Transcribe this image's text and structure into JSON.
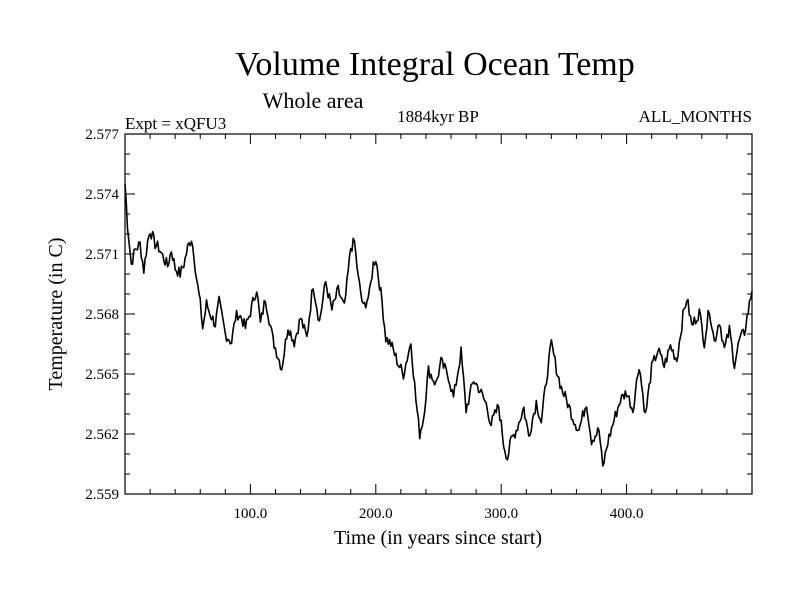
{
  "chart_data": {
    "type": "line",
    "title": "Volume Integral Ocean Temp",
    "subtitle": "Whole area",
    "left_label": "Expt = xQFU3",
    "center_label": "1884kyr BP",
    "right_label": "ALL_MONTHS",
    "xlabel": "Time (in years since start)",
    "ylabel": "Temperature (in C)",
    "xlim": [
      0,
      500
    ],
    "ylim": [
      2.559,
      2.577
    ],
    "x_ticks": [
      100,
      200,
      300,
      400
    ],
    "x_tick_labels": [
      "100.0",
      "200.0",
      "300.0",
      "400.0"
    ],
    "y_ticks": [
      2.559,
      2.562,
      2.565,
      2.568,
      2.571,
      2.574,
      2.577
    ],
    "y_tick_labels": [
      "2.559",
      "2.562",
      "2.565",
      "2.568",
      "2.571",
      "2.574",
      "2.577"
    ],
    "legend": "none",
    "grid": false,
    "series": [
      {
        "name": "Volume Integral Ocean Temp",
        "anchors": {
          "x": [
            0,
            2,
            5,
            8,
            12,
            15,
            18,
            20,
            24,
            27,
            30,
            34,
            37,
            40,
            44,
            47,
            50,
            53,
            55,
            57,
            60,
            62,
            65,
            68,
            72,
            75,
            80,
            85,
            88,
            90,
            93,
            96,
            100,
            105,
            108,
            112,
            118,
            122,
            125,
            130,
            135,
            140,
            145,
            150,
            155,
            160,
            165,
            170,
            175,
            180,
            183,
            186,
            190,
            195,
            198,
            200,
            205,
            208,
            212,
            218,
            222,
            228,
            232,
            235,
            238,
            242,
            248,
            252,
            258,
            262,
            268,
            272,
            278,
            282,
            288,
            292,
            298,
            302,
            305,
            308,
            312,
            318,
            322,
            328,
            332,
            337,
            340,
            345,
            348,
            352,
            358,
            362,
            368,
            372,
            378,
            381,
            385,
            390,
            395,
            400,
            405,
            410,
            415,
            420,
            425,
            430,
            435,
            440,
            445,
            448,
            452,
            458,
            462,
            466,
            470,
            474,
            478,
            482,
            486,
            490,
            494,
            498,
            500
          ],
          "y": [
            2.5745,
            2.5725,
            2.5705,
            2.5712,
            2.5715,
            2.5702,
            2.5716,
            2.5722,
            2.5715,
            2.5713,
            2.5709,
            2.5704,
            2.5712,
            2.5703,
            2.57,
            2.5705,
            2.5713,
            2.5718,
            2.571,
            2.5698,
            2.5685,
            2.5673,
            2.5685,
            2.568,
            2.5675,
            2.5686,
            2.567,
            2.5666,
            2.5678,
            2.568,
            2.5678,
            2.5673,
            2.5681,
            2.5693,
            2.5675,
            2.5688,
            2.5667,
            2.5659,
            2.5653,
            2.5674,
            2.5666,
            2.5678,
            2.5668,
            2.5695,
            2.5676,
            2.5696,
            2.5682,
            2.5692,
            2.5683,
            2.5713,
            2.5716,
            2.5698,
            2.5683,
            2.569,
            2.5705,
            2.5708,
            2.5686,
            2.5668,
            2.5665,
            2.5655,
            2.565,
            2.5666,
            2.5637,
            2.562,
            2.5628,
            2.5652,
            2.5645,
            2.5656,
            2.5649,
            2.5638,
            2.5661,
            2.5632,
            2.5647,
            2.5643,
            2.5635,
            2.5625,
            2.5634,
            2.5615,
            2.5608,
            2.5617,
            2.5622,
            2.5633,
            2.5619,
            2.5636,
            2.5626,
            2.5652,
            2.5665,
            2.565,
            2.5643,
            2.5637,
            2.5627,
            2.5622,
            2.5636,
            2.5617,
            2.5622,
            2.5603,
            2.5616,
            2.5627,
            2.5637,
            2.5641,
            2.5632,
            2.5655,
            2.5629,
            2.5653,
            2.5662,
            2.5654,
            2.5664,
            2.5657,
            2.5679,
            2.5688,
            2.5674,
            2.5681,
            2.5666,
            2.5683,
            2.5666,
            2.5677,
            2.5662,
            2.5672,
            2.5655,
            2.5667,
            2.5671,
            2.5685,
            2.5692
          ]
        }
      }
    ]
  }
}
